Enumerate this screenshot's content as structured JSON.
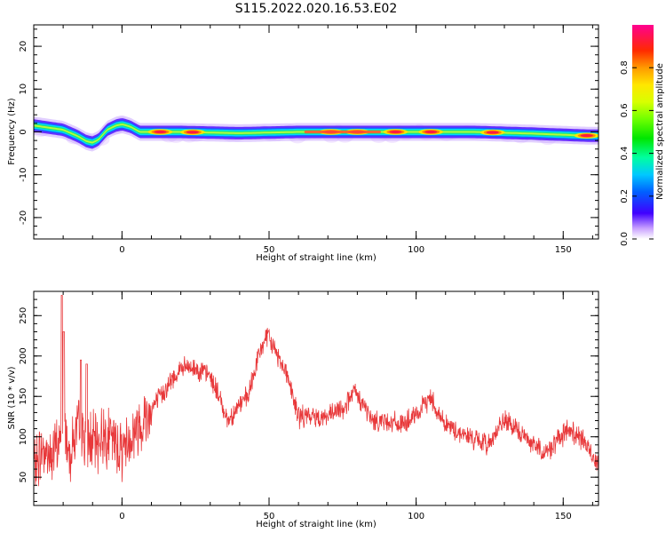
{
  "figure": {
    "title": "S115.2022.020.16.53.E02"
  },
  "chart_data": [
    {
      "type": "heatmap",
      "xlabel": "Height of straight line (km)",
      "ylabel": "Frequency (Hz)",
      "xlim": [
        -30,
        162
      ],
      "ylim": [
        -25,
        25
      ],
      "xticks": [
        0,
        50,
        100,
        150
      ],
      "yticks": [
        -20,
        -10,
        0,
        10,
        20
      ],
      "colorbar": {
        "label": "Normalized spectral amplitude",
        "range": [
          0,
          1
        ],
        "ticks": [
          "0.0",
          "0.2",
          "0.4",
          "0.6",
          "0.8"
        ],
        "colormap": "gist_ncar_like"
      },
      "ridge": {
        "x": [
          -30,
          -25,
          -20,
          -15,
          -12,
          -10,
          -8,
          -5,
          -2,
          0,
          3,
          6,
          10,
          20,
          40,
          60,
          80,
          90,
          100,
          120,
          140,
          155,
          160
        ],
        "y": [
          1.5,
          1,
          0.5,
          -1,
          -2.2,
          -2.5,
          -1.8,
          0.5,
          1.5,
          1.8,
          1.2,
          0,
          0,
          0,
          -0.3,
          0,
          0,
          0,
          0,
          0,
          -0.4,
          -0.8,
          -0.9
        ]
      },
      "hotspots_x": [
        13,
        24,
        71,
        80,
        93,
        105,
        126,
        158
      ]
    },
    {
      "type": "line",
      "xlabel": "Height of straight line (km)",
      "ylabel": "SNR (10 * v/v)",
      "xlim": [
        -30,
        162
      ],
      "ylim": [
        15,
        280
      ],
      "xticks": [
        0,
        50,
        100,
        150
      ],
      "yticks": [
        50,
        100,
        150,
        200,
        250
      ],
      "color": "#e8383a",
      "envelope": {
        "x": [
          -30,
          -27,
          -24,
          -21,
          -20,
          -18,
          -15,
          -12,
          -9,
          -6,
          -3,
          0,
          5,
          10,
          15,
          20,
          25,
          30,
          33,
          36,
          40,
          43,
          46,
          49,
          51,
          53,
          56,
          58,
          60,
          65,
          70,
          75,
          79,
          82,
          85,
          90,
          95,
          100,
          103,
          105,
          108,
          112,
          118,
          124,
          130,
          137,
          144,
          148,
          152,
          155,
          158,
          160,
          162
        ],
        "y": [
          60,
          85,
          75,
          95,
          130,
          80,
          110,
          100,
          90,
          105,
          95,
          85,
          110,
          135,
          160,
          185,
          185,
          175,
          150,
          120,
          140,
          150,
          195,
          225,
          215,
          200,
          180,
          150,
          125,
          125,
          125,
          135,
          155,
          140,
          120,
          120,
          115,
          125,
          140,
          150,
          125,
          110,
          100,
          90,
          120,
          100,
          80,
          95,
          110,
          100,
          90,
          75,
          70
        ]
      },
      "spikes": [
        {
          "x": -20.5,
          "y": 275
        },
        {
          "x": -19.8,
          "y": 230
        },
        {
          "x": -14,
          "y": 195
        },
        {
          "x": -12,
          "y": 190
        }
      ]
    }
  ]
}
